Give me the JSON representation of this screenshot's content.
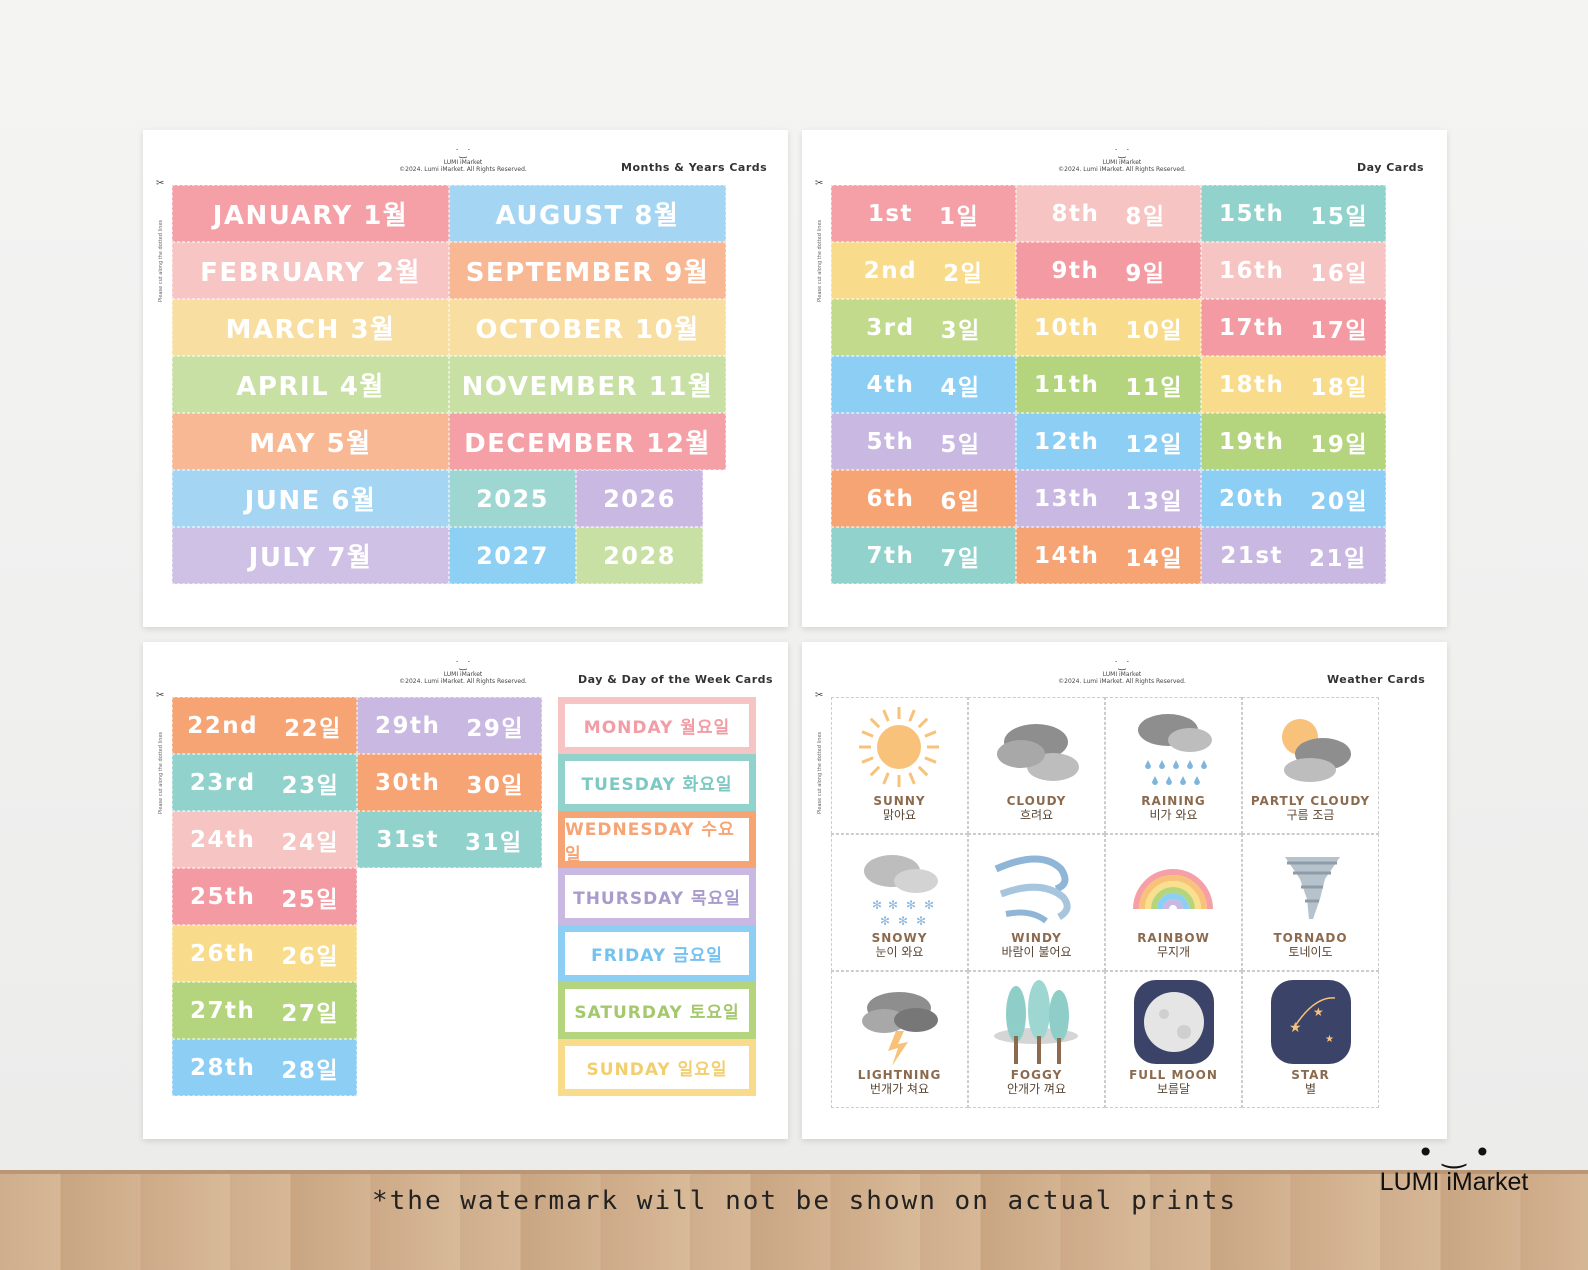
{
  "sheets": {
    "months": {
      "title": "Months & Years Cards",
      "copyright": "©2024. Lumi iMarket. All Rights Reserved."
    },
    "days": {
      "title": "Day Cards",
      "copyright": "©2024. Lumi iMarket. All Rights Reserved."
    },
    "week": {
      "title": "Day & Day of the Week Cards",
      "copyright": "©2024. Lumi iMarket. All Rights Reserved."
    },
    "weather": {
      "title": "Weather Cards",
      "copyright": "©2024. Lumi iMarket. All Rights Reserved."
    }
  },
  "logo_small": "LUMI iMarket",
  "cut_note": "Please cut along the dotted lines",
  "months": [
    {
      "label": "JANUARY 1월",
      "color": "#f4a0a6"
    },
    {
      "label": "FEBRUARY 2월",
      "color": "#f6c5c4"
    },
    {
      "label": "MARCH 3월",
      "color": "#f8dea0"
    },
    {
      "label": "APRIL 4월",
      "color": "#c9e0a4"
    },
    {
      "label": "MAY 5월",
      "color": "#f8b893"
    },
    {
      "label": "JUNE 6월",
      "color": "#a4d6f4"
    },
    {
      "label": "JULY 7월",
      "color": "#cfc0e6"
    },
    {
      "label": "AUGUST 8월",
      "color": "#a4d6f4"
    },
    {
      "label": "SEPTEMBER 9월",
      "color": "#f8b893"
    },
    {
      "label": "OCTOBER 10월",
      "color": "#f8dea0"
    },
    {
      "label": "NOVEMBER 11월",
      "color": "#c9e0a4"
    },
    {
      "label": "DECEMBER 12월",
      "color": "#f4a0a6"
    }
  ],
  "years": [
    {
      "label": "2025",
      "color": "#9ed6d2"
    },
    {
      "label": "2026",
      "color": "#c8b8e2"
    },
    {
      "label": "2027",
      "color": "#8ed0f4"
    },
    {
      "label": "2028",
      "color": "#c9e0a4"
    }
  ],
  "days_a": [
    {
      "en": "1st",
      "ko": "1일",
      "color": "#f4a0a6"
    },
    {
      "en": "2nd",
      "ko": "2일",
      "color": "#f8dc8c"
    },
    {
      "en": "3rd",
      "ko": "3일",
      "color": "#c1da8c"
    },
    {
      "en": "4th",
      "ko": "4일",
      "color": "#8ccef4"
    },
    {
      "en": "5th",
      "ko": "5일",
      "color": "#c8b8e2"
    },
    {
      "en": "6th",
      "ko": "6일",
      "color": "#f6a474"
    },
    {
      "en": "7th",
      "ko": "7일",
      "color": "#92d2cc"
    },
    {
      "en": "8th",
      "ko": "8일",
      "color": "#f6c4c2"
    },
    {
      "en": "9th",
      "ko": "9일",
      "color": "#f49aa2"
    },
    {
      "en": "10th",
      "ko": "10일",
      "color": "#f8dc8c"
    },
    {
      "en": "11th",
      "ko": "11일",
      "color": "#b4d47e"
    },
    {
      "en": "12th",
      "ko": "12일",
      "color": "#8ccef4"
    },
    {
      "en": "13th",
      "ko": "13일",
      "color": "#c8b8e2"
    },
    {
      "en": "14th",
      "ko": "14일",
      "color": "#f6a474"
    },
    {
      "en": "15th",
      "ko": "15일",
      "color": "#92d2cc"
    },
    {
      "en": "16th",
      "ko": "16일",
      "color": "#f6c4c2"
    },
    {
      "en": "17th",
      "ko": "17일",
      "color": "#f49aa2"
    },
    {
      "en": "18th",
      "ko": "18일",
      "color": "#f8dc8c"
    },
    {
      "en": "19th",
      "ko": "19일",
      "color": "#b4d47e"
    },
    {
      "en": "20th",
      "ko": "20일",
      "color": "#8ccef4"
    },
    {
      "en": "21st",
      "ko": "21일",
      "color": "#c8b8e2"
    }
  ],
  "days_b": [
    {
      "en": "22nd",
      "ko": "22일",
      "color": "#f6a474"
    },
    {
      "en": "23rd",
      "ko": "23일",
      "color": "#92d2cc"
    },
    {
      "en": "24th",
      "ko": "24일",
      "color": "#f6c4c2"
    },
    {
      "en": "25th",
      "ko": "25일",
      "color": "#f49aa2"
    },
    {
      "en": "26th",
      "ko": "26일",
      "color": "#f8dc8c"
    },
    {
      "en": "27th",
      "ko": "27일",
      "color": "#b4d47e"
    },
    {
      "en": "28th",
      "ko": "28일",
      "color": "#8ccef4"
    },
    {
      "en": "29th",
      "ko": "29일",
      "color": "#c8b8e2"
    },
    {
      "en": "30th",
      "ko": "30일",
      "color": "#f6a474"
    },
    {
      "en": "31st",
      "ko": "31일",
      "color": "#92d2cc"
    }
  ],
  "weekdays": [
    {
      "label": "MONDAY 월요일",
      "frame": "#f6c4c2",
      "text": "#f29ca6"
    },
    {
      "label": "TUESDAY 화요일",
      "frame": "#92d2cc",
      "text": "#7cc8c2"
    },
    {
      "label": "WEDNESDAY 수요일",
      "frame": "#f6a474",
      "text": "#f6a474"
    },
    {
      "label": "THURSDAY 목요일",
      "frame": "#c8b8e2",
      "text": "#a99ccc"
    },
    {
      "label": "FRIDAY 금요일",
      "frame": "#8ccef4",
      "text": "#74c2f0"
    },
    {
      "label": "SATURDAY 토요일",
      "frame": "#b4d47e",
      "text": "#a4c86c"
    },
    {
      "label": "SUNDAY 일요일",
      "frame": "#f8dc8c",
      "text": "#f2cf6e"
    }
  ],
  "weather": [
    {
      "en": "SUNNY",
      "ko": "맑아요",
      "icon": "sun-icon"
    },
    {
      "en": "CLOUDY",
      "ko": "흐려요",
      "icon": "cloud-icon"
    },
    {
      "en": "RAINING",
      "ko": "비가 와요",
      "icon": "rain-icon"
    },
    {
      "en": "PARTLY CLOUDY",
      "ko": "구름 조금",
      "icon": "partly-cloudy-icon"
    },
    {
      "en": "SNOWY",
      "ko": "눈이 와요",
      "icon": "snow-icon"
    },
    {
      "en": "WINDY",
      "ko": "바람이 불어요",
      "icon": "wind-icon"
    },
    {
      "en": "RAINBOW",
      "ko": "무지개",
      "icon": "rainbow-icon"
    },
    {
      "en": "TORNADO",
      "ko": "토네이도",
      "icon": "tornado-icon"
    },
    {
      "en": "LIGHTNING",
      "ko": "번개가 쳐요",
      "icon": "lightning-icon"
    },
    {
      "en": "FOGGY",
      "ko": "안개가 껴요",
      "icon": "fog-icon"
    },
    {
      "en": "FULL MOON",
      "ko": "보름달",
      "icon": "moon-icon"
    },
    {
      "en": "STAR",
      "ko": "별",
      "icon": "star-icon"
    }
  ],
  "footer": {
    "note": "*the watermark will not be shown on actual prints",
    "brand": "LUMI iMarket"
  }
}
